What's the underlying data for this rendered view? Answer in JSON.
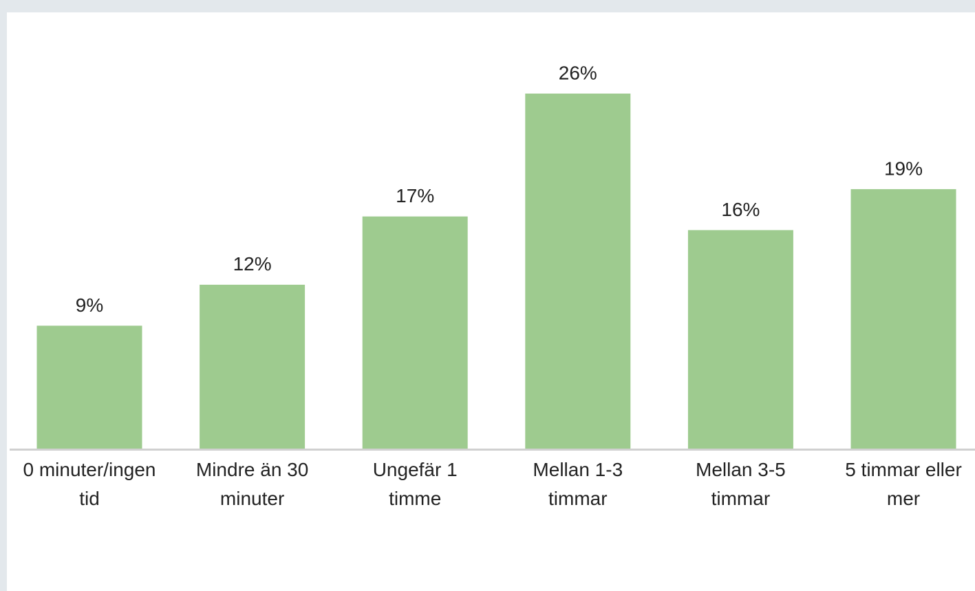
{
  "chart_data": {
    "type": "bar",
    "categories": [
      "0 minuter/ingen tid",
      "Mindre än 30 minuter",
      "Ungefär 1 timme",
      "Mellan 1-3 timmar",
      "Mellan 3-5 timmar",
      "5 timmar eller mer"
    ],
    "values": [
      9,
      12,
      17,
      26,
      16,
      19
    ],
    "value_labels": [
      "9%",
      "12%",
      "17%",
      "26%",
      "16%",
      "19%"
    ],
    "color": "#9ecb8f"
  }
}
